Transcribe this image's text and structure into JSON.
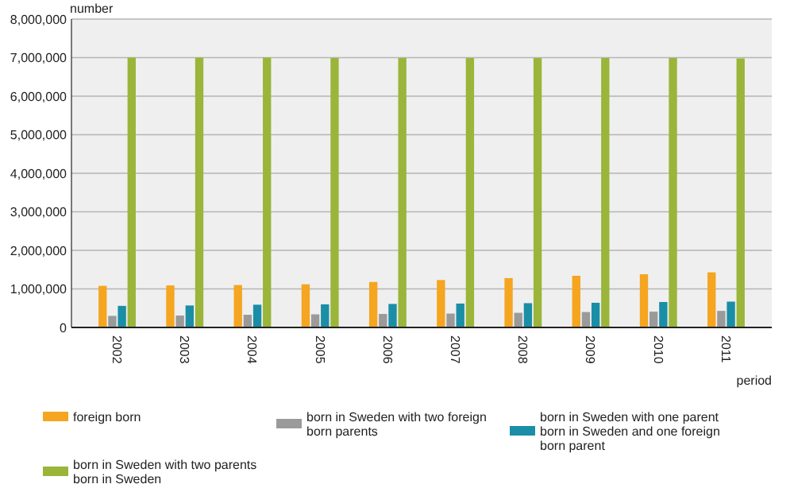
{
  "chart_data": {
    "type": "bar",
    "xlabel": "period",
    "ylabel": "number",
    "categories": [
      "2002",
      "2003",
      "2004",
      "2005",
      "2006",
      "2007",
      "2008",
      "2009",
      "2010",
      "2011"
    ],
    "series": [
      {
        "name": "foreign born",
        "color": "#f5a51f",
        "values": [
          1080000,
          1090000,
          1100000,
          1120000,
          1180000,
          1230000,
          1280000,
          1340000,
          1380000,
          1430000
        ]
      },
      {
        "name": "born in Sweden with two foreign born parents",
        "color": "#9a9a9a",
        "values": [
          300000,
          310000,
          330000,
          340000,
          350000,
          360000,
          380000,
          400000,
          410000,
          430000
        ]
      },
      {
        "name": "born in Sweden with one parent born in Sweden and one foreign born parent",
        "color": "#1a8ea6",
        "values": [
          560000,
          570000,
          590000,
          600000,
          610000,
          620000,
          630000,
          640000,
          660000,
          670000
        ]
      },
      {
        "name": "born in Sweden with two parents born in Sweden",
        "color": "#9ab53a",
        "values": [
          7000000,
          7000000,
          7000000,
          6990000,
          6990000,
          6990000,
          6990000,
          6990000,
          6990000,
          6980000
        ]
      }
    ],
    "ylim": [
      0,
      8000000
    ],
    "yticks": [
      {
        "value": 0,
        "label": "0"
      },
      {
        "value": 1000000,
        "label": "1,000,000"
      },
      {
        "value": 2000000,
        "label": "2,000,000"
      },
      {
        "value": 3000000,
        "label": "3,000,000"
      },
      {
        "value": 4000000,
        "label": "4,000,000"
      },
      {
        "value": 5000000,
        "label": "5,000,000"
      },
      {
        "value": 6000000,
        "label": "6,000,000"
      },
      {
        "value": 7000000,
        "label": "7,000,000"
      },
      {
        "value": 8000000,
        "label": "8,000,000"
      }
    ],
    "grid": "y",
    "legend": "bottom"
  }
}
